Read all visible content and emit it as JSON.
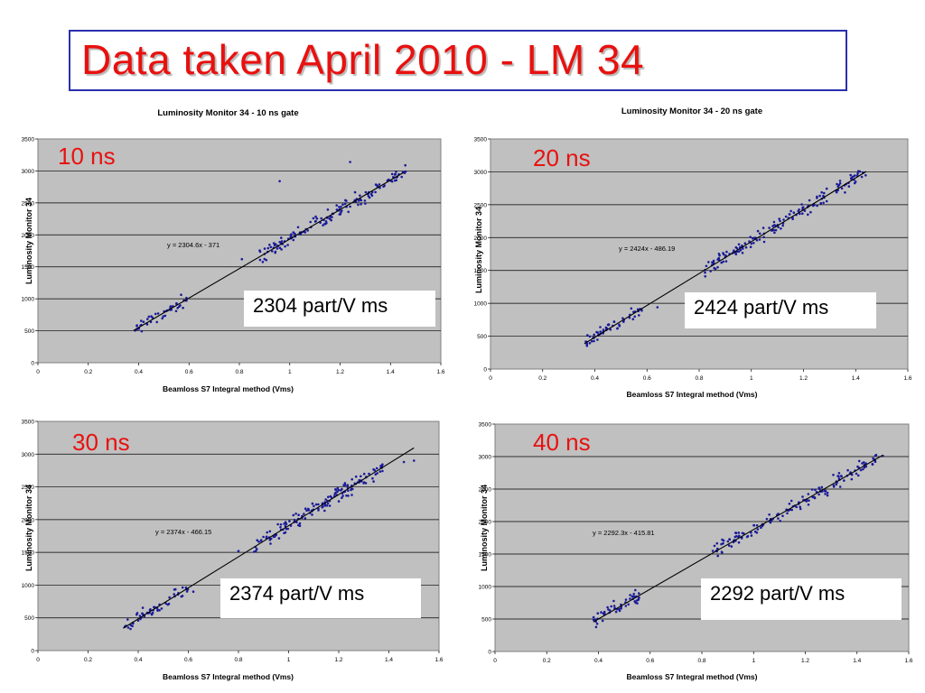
{
  "slide": {
    "title": "Data taken April 2010 -  LM 34"
  },
  "panels": [
    {
      "gate_label": "10 ns",
      "rate_label": "2304 part/V ms"
    },
    {
      "gate_label": "20 ns",
      "rate_label": "2424 part/V ms"
    },
    {
      "gate_label": "30 ns",
      "rate_label": "2374 part/V ms"
    },
    {
      "gate_label": "40 ns",
      "rate_label": "2292 part/V ms"
    }
  ],
  "chart_data": [
    {
      "type": "scatter",
      "title": "Luminosity Monitor 34 - 10 ns gate",
      "xlabel": "Beamloss S7 Integral method (Vms)",
      "ylabel": "Luminosity Monitor 34",
      "xlim": [
        0,
        1.6
      ],
      "ylim": [
        0,
        3500
      ],
      "x_ticks": [
        "0",
        "0.2",
        "0.4",
        "0.6",
        "0.8",
        "1",
        "1.2",
        "1.4",
        "1.6"
      ],
      "y_ticks": [
        "0",
        "500",
        "1000",
        "1500",
        "2000",
        "2500",
        "3000",
        "3500"
      ],
      "grid": true,
      "background": "#c0c0c0",
      "point_color": "#1a1a9a",
      "trendline": {
        "equation": "y = 2304.6x - 371",
        "slope": 2304.6,
        "intercept": -371,
        "x_range": [
          0.38,
          1.45
        ]
      },
      "clusters": [
        {
          "x_range": [
            0.38,
            0.59
          ],
          "count": 45
        },
        {
          "x_range": [
            0.88,
            1.46
          ],
          "count": 150
        }
      ],
      "outliers": [
        {
          "x": 0.96,
          "y": 2840
        },
        {
          "x": 1.24,
          "y": 3140
        },
        {
          "x": 0.9,
          "y": 1700
        },
        {
          "x": 0.81,
          "y": 1620
        },
        {
          "x": 1.3,
          "y": 2490
        }
      ]
    },
    {
      "type": "scatter",
      "title": "Luminosity Monitor 34 - 20 ns gate",
      "xlabel": "Beamloss S7 Integral method (Vms)",
      "ylabel": "Luminosity Monitor 34",
      "xlim": [
        0,
        1.6
      ],
      "ylim": [
        0,
        3500
      ],
      "x_ticks": [
        "0",
        "0.2",
        "0.4",
        "0.6",
        "0.8",
        "1",
        "1.2",
        "1.4",
        "1.6"
      ],
      "y_ticks": [
        "0",
        "500",
        "1000",
        "1500",
        "2000",
        "2500",
        "3000",
        "3500"
      ],
      "grid": true,
      "background": "#c0c0c0",
      "point_color": "#1a1a9a",
      "trendline": {
        "equation": "y = 2424x - 486.19",
        "slope": 2424,
        "intercept": -486.19,
        "x_range": [
          0.36,
          1.44
        ]
      },
      "clusters": [
        {
          "x_range": [
            0.36,
            0.58
          ],
          "count": 55
        },
        {
          "x_range": [
            0.82,
            1.44
          ],
          "count": 150
        }
      ],
      "outliers": [
        {
          "x": 0.64,
          "y": 940
        },
        {
          "x": 1.4,
          "y": 2850
        }
      ]
    },
    {
      "type": "scatter",
      "title": "",
      "xlabel": "Beamloss S7 Integral method (Vms)",
      "ylabel": "Luminosity Monitor 34",
      "xlim": [
        0,
        1.6
      ],
      "ylim": [
        0,
        3500
      ],
      "x_ticks": [
        "0",
        "0.2",
        "0.4",
        "0.6",
        "0.8",
        "1",
        "1.2",
        "1.4",
        "1.6"
      ],
      "y_ticks": [
        "0",
        "500",
        "1000",
        "1500",
        "2000",
        "2500",
        "3000",
        "3500"
      ],
      "grid": true,
      "background": "#c0c0c0",
      "point_color": "#1a1a9a",
      "trendline": {
        "equation": "y = 2374x - 466.15",
        "slope": 2374,
        "intercept": -466.15,
        "x_range": [
          0.34,
          1.5
        ]
      },
      "clusters": [
        {
          "x_range": [
            0.34,
            0.6
          ],
          "count": 55
        },
        {
          "x_range": [
            0.86,
            1.38
          ],
          "count": 150
        }
      ],
      "outliers": [
        {
          "x": 0.8,
          "y": 1520
        },
        {
          "x": 1.46,
          "y": 2880
        },
        {
          "x": 1.5,
          "y": 2900
        },
        {
          "x": 0.62,
          "y": 900
        }
      ]
    },
    {
      "type": "scatter",
      "title": "",
      "xlabel": "Beamloss S7 Integral method (Vms)",
      "ylabel": "Luminosity Monitor 34",
      "xlim": [
        0,
        1.6
      ],
      "ylim": [
        0,
        3500
      ],
      "x_ticks": [
        "0",
        "0.2",
        "0.4",
        "0.6",
        "0.8",
        "1",
        "1.2",
        "1.4",
        "1.6"
      ],
      "y_ticks": [
        "0",
        "500",
        "1000",
        "1500",
        "2000",
        "2500",
        "3000",
        "3500"
      ],
      "grid": true,
      "background": "#c0c0c0",
      "point_color": "#1a1a9a",
      "trendline": {
        "equation": "y = 2292.3x - 415.81",
        "slope": 2292.3,
        "intercept": -415.81,
        "x_range": [
          0.38,
          1.5
        ]
      },
      "clusters": [
        {
          "x_range": [
            0.38,
            0.56
          ],
          "count": 50
        },
        {
          "x_range": [
            0.84,
            1.48
          ],
          "count": 150
        }
      ],
      "outliers": [
        {
          "x": 1.5,
          "y": 3010
        },
        {
          "x": 1.46,
          "y": 2880
        }
      ]
    }
  ]
}
